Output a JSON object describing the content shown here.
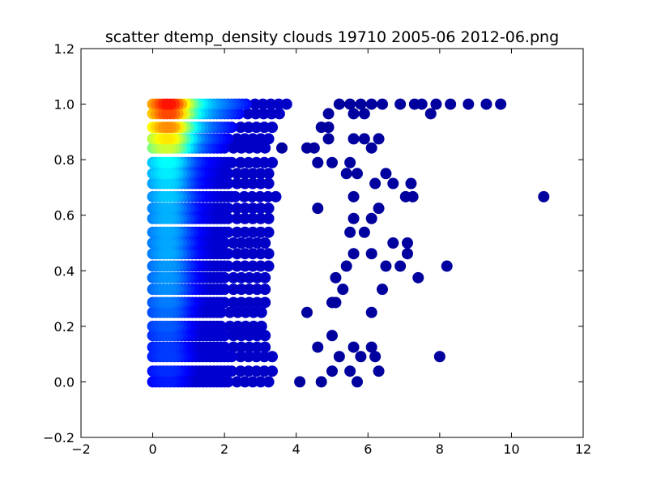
{
  "chart_data": {
    "type": "scatter",
    "title": "scatter dtemp_density clouds 19710 2005-06 2012-06.png",
    "xlabel": "",
    "ylabel": "",
    "xlim": [
      -2,
      12
    ],
    "ylim": [
      -0.2,
      1.2
    ],
    "xticks": [
      -2,
      0,
      2,
      4,
      6,
      8,
      10,
      12
    ],
    "yticks": [
      -0.2,
      0.0,
      0.2,
      0.4,
      0.6,
      0.8,
      1.0,
      1.2
    ],
    "xtick_labels": [
      "−2",
      "0",
      "2",
      "4",
      "6",
      "8",
      "10",
      "12"
    ],
    "ytick_labels": [
      "−0.2",
      "0.0",
      "0.2",
      "0.4",
      "0.6",
      "0.8",
      "1.0",
      "1.2"
    ],
    "colormap": "jet",
    "point_color_meaning": "local point density (jet colormap, blue = low, red = high)",
    "rows": [
      {
        "y": 1.0,
        "density": 1.0,
        "spread": 2.6,
        "outliers": [
          5.2,
          5.5,
          5.8,
          6.1,
          6.4,
          6.9,
          7.3,
          7.5,
          7.9,
          8.3,
          8.8,
          9.3,
          9.7
        ]
      },
      {
        "y": 0.9655,
        "density": 0.95,
        "spread": 2.4,
        "outliers": [
          4.9,
          5.6,
          5.9,
          7.75
        ]
      },
      {
        "y": 0.9167,
        "density": 0.88,
        "spread": 2.2,
        "outliers": [
          4.7,
          4.9
        ]
      },
      {
        "y": 0.875,
        "density": 0.78,
        "spread": 2.1,
        "outliers": [
          4.9,
          5.6,
          5.9,
          6.3
        ]
      },
      {
        "y": 0.8421,
        "density": 0.7,
        "spread": 2.0,
        "outliers": [
          3.6,
          4.3,
          4.5,
          6.1
        ]
      },
      {
        "y": 0.7895,
        "density": 0.45,
        "spread": 2.2,
        "outliers": [
          4.6,
          5.0,
          5.5
        ]
      },
      {
        "y": 0.75,
        "density": 0.43,
        "spread": 2.1,
        "outliers": [
          5.4,
          5.7,
          6.5
        ]
      },
      {
        "y": 0.7143,
        "density": 0.4,
        "spread": 2.1,
        "outliers": [
          6.2,
          6.7,
          7.2
        ]
      },
      {
        "y": 0.6667,
        "density": 0.38,
        "spread": 2.3,
        "outliers": [
          5.6,
          7.05,
          7.25,
          10.9
        ]
      },
      {
        "y": 0.625,
        "density": 0.36,
        "spread": 2.1,
        "outliers": [
          4.6,
          6.3
        ]
      },
      {
        "y": 0.5882,
        "density": 0.36,
        "spread": 2.1,
        "outliers": [
          5.6,
          6.1
        ]
      },
      {
        "y": 0.5385,
        "density": 0.35,
        "spread": 2.1,
        "outliers": [
          5.5,
          5.9
        ]
      },
      {
        "y": 0.5,
        "density": 0.35,
        "spread": 2.0,
        "outliers": [
          6.7,
          7.1
        ]
      },
      {
        "y": 0.4615,
        "density": 0.35,
        "spread": 2.1,
        "outliers": [
          5.6,
          6.1,
          7.1
        ]
      },
      {
        "y": 0.4167,
        "density": 0.33,
        "spread": 2.1,
        "outliers": [
          5.4,
          6.5,
          6.9,
          8.2
        ]
      },
      {
        "y": 0.375,
        "density": 0.33,
        "spread": 2.0,
        "outliers": [
          5.1,
          7.4
        ]
      },
      {
        "y": 0.3333,
        "density": 0.32,
        "spread": 2.0,
        "outliers": [
          5.3,
          6.4
        ]
      },
      {
        "y": 0.2857,
        "density": 0.3,
        "spread": 2.0,
        "outliers": [
          5.0,
          5.1
        ]
      },
      {
        "y": 0.25,
        "density": 0.28,
        "spread": 1.9,
        "outliers": [
          4.3,
          6.1
        ]
      },
      {
        "y": 0.2,
        "density": 0.26,
        "spread": 1.9,
        "outliers": []
      },
      {
        "y": 0.1667,
        "density": 0.24,
        "spread": 2.0,
        "outliers": [
          5.0
        ]
      },
      {
        "y": 0.125,
        "density": 0.22,
        "spread": 2.0,
        "outliers": [
          4.6,
          5.6,
          6.1
        ]
      },
      {
        "y": 0.0909,
        "density": 0.22,
        "spread": 2.2,
        "outliers": [
          5.2,
          5.8,
          6.2,
          8.0
        ]
      },
      {
        "y": 0.0385,
        "density": 0.2,
        "spread": 2.2,
        "outliers": [
          5.0,
          5.5,
          6.3
        ]
      },
      {
        "y": 0.0,
        "density": 0.18,
        "spread": 2.1,
        "outliers": [
          4.1,
          4.7,
          5.7
        ]
      }
    ]
  }
}
